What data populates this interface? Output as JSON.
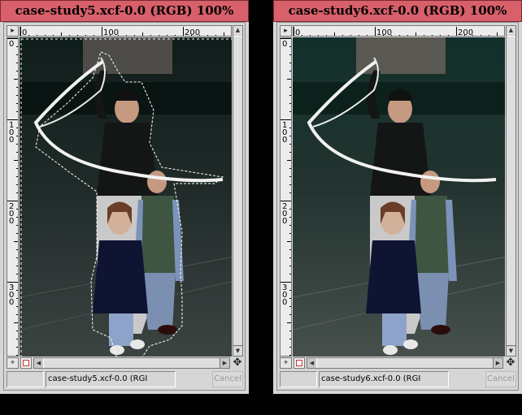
{
  "windows": [
    {
      "title": "case-study5.xcf-0.0 (RGB) 100%",
      "status_text": "case-study5.xcf-0.0 (RGI",
      "cancel_label": "Cancel",
      "h_ruler_ticks": [
        "0",
        "100",
        "200"
      ],
      "v_ruler_ticks": [
        "0",
        "1\n0\n0",
        "2\n0\n0",
        "3\n0\n0"
      ],
      "selection_visible": true,
      "image_description": "photo"
    },
    {
      "title": "case-study6.xcf-0.0 (RGB) 100%",
      "status_text": "case-study6.xcf-0.0 (RGI",
      "cancel_label": "Cancel",
      "h_ruler_ticks": [
        "0",
        "100",
        "200"
      ],
      "v_ruler_ticks": [
        "0",
        "1\n0\n0",
        "2\n0\n0",
        "3\n0\n0"
      ],
      "selection_visible": false,
      "image_description": "photo"
    }
  ],
  "icons": {
    "menu": "triangle-menu-icon",
    "quickmask": "quickmask-icon",
    "navigate": "navigate-cross-icon",
    "zoom": "zoom-icon"
  },
  "colors": {
    "titlebar": "#d8606a",
    "background": "#000000"
  }
}
